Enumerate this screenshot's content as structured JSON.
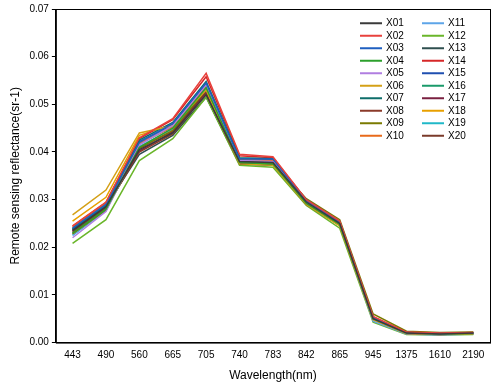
{
  "chart_data": {
    "type": "line",
    "x_label": "Wavelength(nm)",
    "y_label": "Remote sensing reflectance(sr-1)",
    "categories": [
      "443",
      "490",
      "560",
      "665",
      "705",
      "740",
      "783",
      "842",
      "865",
      "945",
      "1375",
      "1610",
      "2190"
    ],
    "ylim": [
      0,
      0.07
    ],
    "yticks": [
      {
        "value": 0,
        "label": "0.00"
      },
      {
        "value": 0.01,
        "label": "0.01"
      },
      {
        "value": 0.02,
        "label": "0.02"
      },
      {
        "value": 0.03,
        "label": "0.03"
      },
      {
        "value": 0.04,
        "label": "0.04"
      },
      {
        "value": 0.05,
        "label": "0.05"
      },
      {
        "value": 0.06,
        "label": "0.06"
      },
      {
        "value": 0.07,
        "label": "0.07"
      }
    ],
    "grid": false,
    "legend": "upper right",
    "series": [
      {
        "name": "X01",
        "color": "#3a3a3a",
        "values": [
          0.0235,
          0.0285,
          0.0405,
          0.044,
          0.052,
          0.038,
          0.0378,
          0.0295,
          0.025,
          0.005,
          0.002,
          0.0018,
          0.002
        ]
      },
      {
        "name": "X02",
        "color": "#e8413c",
        "values": [
          0.0245,
          0.0295,
          0.043,
          0.047,
          0.0565,
          0.0395,
          0.039,
          0.03,
          0.0255,
          0.0055,
          0.0022,
          0.002,
          0.0021
        ]
      },
      {
        "name": "X03",
        "color": "#1f5fc0",
        "values": [
          0.024,
          0.029,
          0.042,
          0.046,
          0.0545,
          0.0385,
          0.0385,
          0.0298,
          0.0252,
          0.0052,
          0.0021,
          0.0019,
          0.002
        ]
      },
      {
        "name": "X04",
        "color": "#2ca02c",
        "values": [
          0.023,
          0.028,
          0.041,
          0.045,
          0.0535,
          0.0378,
          0.0375,
          0.0292,
          0.0248,
          0.005,
          0.002,
          0.0018,
          0.0019
        ]
      },
      {
        "name": "X05",
        "color": "#b07ee0",
        "values": [
          0.022,
          0.0275,
          0.0415,
          0.0455,
          0.054,
          0.0382,
          0.038,
          0.0296,
          0.0251,
          0.0051,
          0.002,
          0.0018,
          0.002
        ]
      },
      {
        "name": "X06",
        "color": "#d4a017",
        "values": [
          0.0268,
          0.032,
          0.044,
          0.0455,
          0.053,
          0.0375,
          0.0372,
          0.029,
          0.0245,
          0.0048,
          0.0019,
          0.0017,
          0.0018
        ]
      },
      {
        "name": "X07",
        "color": "#0e6e6a",
        "values": [
          0.0238,
          0.0288,
          0.0425,
          0.0462,
          0.0548,
          0.0388,
          0.0386,
          0.03,
          0.0254,
          0.0053,
          0.0021,
          0.0019,
          0.002
        ]
      },
      {
        "name": "X08",
        "color": "#8b3a2a",
        "values": [
          0.0232,
          0.0282,
          0.04,
          0.0438,
          0.0522,
          0.0376,
          0.0374,
          0.029,
          0.0246,
          0.0049,
          0.0019,
          0.0017,
          0.0019
        ]
      },
      {
        "name": "X09",
        "color": "#7a7a00",
        "values": [
          0.0228,
          0.0278,
          0.0408,
          0.0445,
          0.053,
          0.038,
          0.0378,
          0.0302,
          0.0258,
          0.006,
          0.0024,
          0.0021,
          0.0022
        ]
      },
      {
        "name": "X10",
        "color": "#e86a1a",
        "values": [
          0.0242,
          0.0292,
          0.0418,
          0.0452,
          0.0538,
          0.0384,
          0.0382,
          0.0296,
          0.025,
          0.005,
          0.002,
          0.0018,
          0.002
        ]
      },
      {
        "name": "X11",
        "color": "#5da5e8",
        "values": [
          0.0226,
          0.028,
          0.0412,
          0.0448,
          0.0532,
          0.0379,
          0.0377,
          0.0294,
          0.0249,
          0.0045,
          0.0018,
          0.0016,
          0.0018
        ]
      },
      {
        "name": "X12",
        "color": "#6ab62a",
        "values": [
          0.0208,
          0.0258,
          0.0382,
          0.0428,
          0.0515,
          0.0372,
          0.0368,
          0.0288,
          0.024,
          0.0043,
          0.0017,
          0.0016,
          0.0017
        ]
      },
      {
        "name": "X13",
        "color": "#2f4f4f",
        "values": [
          0.0236,
          0.0286,
          0.0395,
          0.0435,
          0.0515,
          0.0374,
          0.0372,
          0.0291,
          0.0247,
          0.0049,
          0.0019,
          0.0017,
          0.0019
        ]
      },
      {
        "name": "X14",
        "color": "#d62728",
        "values": [
          0.0244,
          0.0294,
          0.0428,
          0.0468,
          0.0558,
          0.0392,
          0.0388,
          0.0299,
          0.0253,
          0.0054,
          0.0022,
          0.0019,
          0.0021
        ]
      },
      {
        "name": "X15",
        "color": "#1f4fb0",
        "values": [
          0.0239,
          0.0289,
          0.0422,
          0.0458,
          0.0542,
          0.0386,
          0.0384,
          0.0297,
          0.0251,
          0.0052,
          0.0021,
          0.0019,
          0.002
        ]
      },
      {
        "name": "X16",
        "color": "#1a9a6a",
        "values": [
          0.0229,
          0.0279,
          0.0416,
          0.0454,
          0.0537,
          0.0381,
          0.0379,
          0.0295,
          0.025,
          0.0051,
          0.002,
          0.0018,
          0.0019
        ]
      },
      {
        "name": "X17",
        "color": "#7a2040",
        "values": [
          0.0234,
          0.0284,
          0.0402,
          0.0442,
          0.0525,
          0.0377,
          0.0375,
          0.0293,
          0.0248,
          0.005,
          0.002,
          0.0018,
          0.0019
        ]
      },
      {
        "name": "X18",
        "color": "#e8a000",
        "values": [
          0.0255,
          0.0305,
          0.0435,
          0.0458,
          0.054,
          0.0379,
          0.0376,
          0.0292,
          0.0247,
          0.0049,
          0.0019,
          0.0017,
          0.0019
        ]
      },
      {
        "name": "X19",
        "color": "#20b8c8",
        "values": [
          0.0225,
          0.0277,
          0.0418,
          0.0456,
          0.0544,
          0.0384,
          0.0382,
          0.0296,
          0.0252,
          0.0052,
          0.0021,
          0.0019,
          0.002
        ]
      },
      {
        "name": "X20",
        "color": "#7a3a2a",
        "values": [
          0.0237,
          0.0287,
          0.0408,
          0.0444,
          0.0528,
          0.0379,
          0.0377,
          0.0294,
          0.0249,
          0.005,
          0.002,
          0.0018,
          0.002
        ]
      }
    ]
  }
}
